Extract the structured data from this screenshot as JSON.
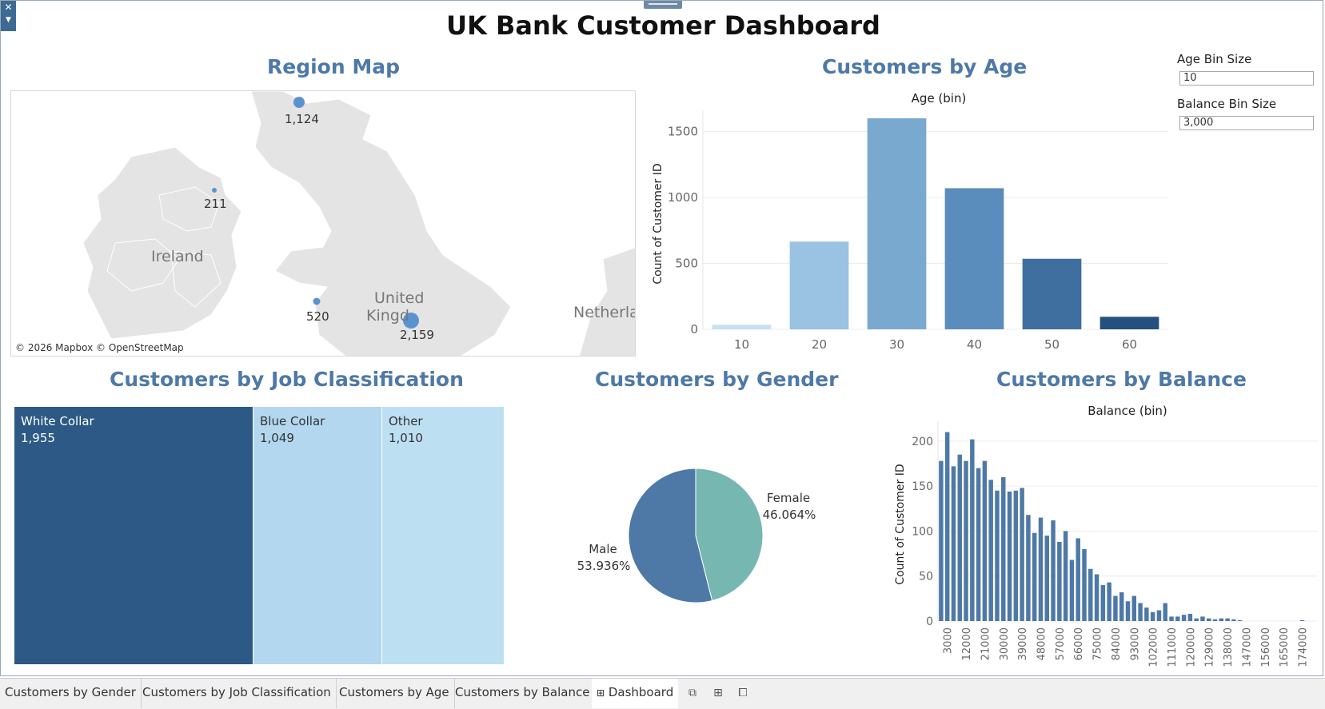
{
  "dashboard": {
    "title": "UK Bank Customer Dashboard"
  },
  "region_map": {
    "title": "Region Map",
    "attribution": "© 2026 Mapbox © OpenStreetMap",
    "places": [
      "Ireland",
      "United",
      "Kingd",
      "Netherla"
    ],
    "points": [
      {
        "label": "1,124",
        "value": 1124
      },
      {
        "label": "211",
        "value": 211
      },
      {
        "label": "520",
        "value": 520
      },
      {
        "label": "2,159",
        "value": 2159
      }
    ]
  },
  "parameters": {
    "age_bin_label": "Age Bin Size",
    "age_bin_value": "10",
    "balance_bin_label": "Balance Bin Size",
    "balance_bin_value": "3,000"
  },
  "job": {
    "title": "Customers by Job Classification",
    "cells": [
      {
        "label": "White Collar",
        "count_label": "1,955",
        "value": 1955,
        "color": "#2c5985",
        "text_color": "#ffffff"
      },
      {
        "label": "Blue Collar",
        "count_label": "1,049",
        "value": 1049,
        "color": "#b3d7ee",
        "text_color": "#333333"
      },
      {
        "label": "Other",
        "count_label": "1,010",
        "value": 1010,
        "color": "#bcdff2",
        "text_color": "#333333"
      }
    ]
  },
  "gender": {
    "title": "Customers by Gender",
    "slices": [
      {
        "name": "Female",
        "pct_label": "46.064%",
        "value": 46.064,
        "color": "#76b7b2"
      },
      {
        "name": "Male",
        "pct_label": "53.936%",
        "value": 53.936,
        "color": "#4e79a7"
      }
    ]
  },
  "age": {
    "title": "Customers by Age"
  },
  "balance": {
    "title": "Customers by Balance"
  },
  "chart_data": [
    {
      "type": "bar",
      "title": "Customers by Age",
      "xlabel": "Age (bin)",
      "ylabel": "Count of Customer ID",
      "categories": [
        "10",
        "20",
        "30",
        "40",
        "50",
        "60"
      ],
      "values": [
        35,
        665,
        1600,
        1070,
        535,
        95
      ],
      "colors": [
        "#c6e1f2",
        "#9ac2e2",
        "#7aa9d0",
        "#5b8dbc",
        "#3f6f9e",
        "#23507e"
      ],
      "yticks": [
        0,
        500,
        1000,
        1500
      ],
      "ylim": [
        0,
        1600
      ],
      "grid": true
    },
    {
      "type": "bar",
      "title": "Customers by Balance",
      "xlabel": "Balance (bin)",
      "ylabel": "Count of Customer ID",
      "color": "#4e79a7",
      "categories": [
        "0",
        "3000",
        "6000",
        "9000",
        "12000",
        "15000",
        "18000",
        "21000",
        "24000",
        "27000",
        "30000",
        "33000",
        "36000",
        "39000",
        "42000",
        "45000",
        "48000",
        "51000",
        "54000",
        "57000",
        "60000",
        "63000",
        "66000",
        "69000",
        "72000",
        "75000",
        "78000",
        "81000",
        "84000",
        "87000",
        "90000",
        "93000",
        "96000",
        "99000",
        "102000",
        "105000",
        "108000",
        "111000",
        "114000",
        "117000",
        "120000",
        "123000",
        "126000",
        "129000",
        "132000",
        "135000",
        "138000",
        "141000",
        "144000",
        "147000",
        "150000",
        "153000",
        "156000",
        "159000",
        "162000",
        "165000",
        "168000",
        "171000",
        "174000",
        "177000",
        "180000"
      ],
      "values": [
        178,
        210,
        172,
        185,
        178,
        202,
        170,
        178,
        157,
        145,
        160,
        144,
        145,
        148,
        118,
        98,
        115,
        95,
        112,
        88,
        100,
        68,
        92,
        80,
        58,
        52,
        40,
        43,
        28,
        32,
        22,
        28,
        20,
        15,
        10,
        12,
        20,
        5,
        5,
        7,
        8,
        3,
        5,
        3,
        2,
        3,
        3,
        2,
        1,
        0,
        0,
        0,
        0,
        0,
        0,
        0,
        0,
        0,
        1,
        0,
        0
      ],
      "xtick_labels": [
        "3000",
        "12000",
        "21000",
        "30000",
        "39000",
        "48000",
        "57000",
        "66000",
        "75000",
        "84000",
        "93000",
        "102000",
        "111000",
        "120000",
        "129000",
        "138000",
        "147000",
        "156000",
        "165000",
        "174000"
      ],
      "yticks": [
        0,
        50,
        100,
        150,
        200
      ],
      "ylim": [
        0,
        215
      ],
      "grid": true
    }
  ],
  "tabs": [
    {
      "label": "Customers by Gender"
    },
    {
      "label": "Customers by Job Classification"
    },
    {
      "label": "Customers by Age"
    },
    {
      "label": "Customers by Balance"
    },
    {
      "label": "Dashboard"
    }
  ]
}
